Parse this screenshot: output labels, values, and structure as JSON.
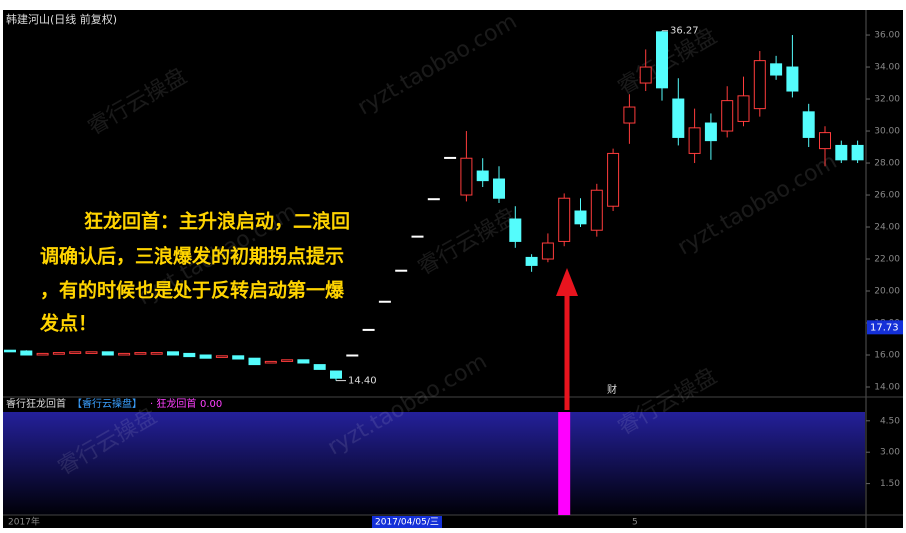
{
  "chart_data": [
    {
      "type": "candlestick",
      "title": "韩建河山(日线 前复权)",
      "annotation": [
        "狂龙回首：主升浪启动，二浪回",
        "调确认后，三浪爆发的初期拐点提示",
        "，有的时候也是处于反转启动第一爆",
        "发点！"
      ],
      "watermark": [
        "睿行云操盘",
        "ryzt.taobao.com"
      ],
      "event_marker": "财",
      "open": [
        16.3,
        16.25,
        16.0,
        16.05,
        16.1,
        16.1,
        16.2,
        16.0,
        16.05,
        16.05,
        16.2,
        16.1,
        16.0,
        15.85,
        15.95,
        15.8,
        15.5,
        15.6,
        15.7,
        15.4,
        15.0,
        16.0,
        17.6,
        19.36,
        21.3,
        23.43,
        25.77,
        28.35,
        26.0,
        27.5,
        27.0,
        24.5,
        22.1,
        22.0,
        23.1,
        25.0,
        23.8,
        25.3,
        30.5,
        33.0,
        36.2,
        32.0,
        28.6,
        30.5,
        30.0,
        30.6,
        31.4,
        34.2,
        34.0,
        31.2,
        28.9,
        29.1,
        29.1
      ],
      "high": [
        16.3,
        16.3,
        16.1,
        16.15,
        16.2,
        16.2,
        16.2,
        16.1,
        16.15,
        16.15,
        16.2,
        16.1,
        16.0,
        15.95,
        15.95,
        15.8,
        15.6,
        15.7,
        15.7,
        15.4,
        15.0,
        16.0,
        17.6,
        19.36,
        21.3,
        23.43,
        25.77,
        28.35,
        30.0,
        28.3,
        27.8,
        25.3,
        22.3,
        23.6,
        26.1,
        25.8,
        26.7,
        28.9,
        32.3,
        35.1,
        36.27,
        33.3,
        31.4,
        31.1,
        32.8,
        33.4,
        35.0,
        34.7,
        36.0,
        31.7,
        30.3,
        29.4,
        29.4
      ],
      "low": [
        16.2,
        16.0,
        16.0,
        16.05,
        16.1,
        16.1,
        16.0,
        16.0,
        16.05,
        16.05,
        16.0,
        15.9,
        15.8,
        15.85,
        15.75,
        15.4,
        15.5,
        15.6,
        15.5,
        15.1,
        14.4,
        16.0,
        17.6,
        19.36,
        21.3,
        23.43,
        25.77,
        28.35,
        25.6,
        26.5,
        25.5,
        22.7,
        21.2,
        21.8,
        22.8,
        24.0,
        23.4,
        25.0,
        29.2,
        32.5,
        31.9,
        29.1,
        28.0,
        28.2,
        29.6,
        30.3,
        30.9,
        33.2,
        32.1,
        29.0,
        27.8,
        28.0,
        28.0
      ],
      "close": [
        16.2,
        16.0,
        16.1,
        16.15,
        16.2,
        16.2,
        16.0,
        16.1,
        16.15,
        16.15,
        16.0,
        15.9,
        15.8,
        15.95,
        15.75,
        15.4,
        15.6,
        15.7,
        15.5,
        15.1,
        14.55,
        16.0,
        17.6,
        19.36,
        21.3,
        23.43,
        25.77,
        28.35,
        28.3,
        26.9,
        25.8,
        23.1,
        21.6,
        23.0,
        25.8,
        24.2,
        26.3,
        28.6,
        31.5,
        34.0,
        32.7,
        29.6,
        30.2,
        29.4,
        31.9,
        32.2,
        34.4,
        33.5,
        32.5,
        29.6,
        29.9,
        28.2,
        28.2
      ],
      "up_color": "#ff3c3c",
      "down_color": "#54fcfc",
      "flat_color": "#ffffff",
      "high_marker": 36.27,
      "low_marker": {
        "value": 14.4,
        "label": "14.40"
      },
      "cursor_price": {
        "value": 17.73,
        "label": "17.73"
      },
      "ylim": [
        13.375,
        37.44
      ],
      "yticks": [
        {
          "value": 14,
          "label": "14.00"
        },
        {
          "value": 16,
          "label": "16.00"
        },
        {
          "value": 18,
          "label": "18.00"
        },
        {
          "value": 20,
          "label": "20.00"
        },
        {
          "value": 22,
          "label": "22.00"
        },
        {
          "value": 24,
          "label": "24.00"
        },
        {
          "value": 26,
          "label": "26.00"
        },
        {
          "value": 28,
          "label": "28.00"
        },
        {
          "value": 30,
          "label": "30.00"
        },
        {
          "value": 32,
          "label": "32.00"
        },
        {
          "value": 34,
          "label": "34.00"
        },
        {
          "value": 36,
          "label": "36.00"
        }
      ]
    },
    {
      "type": "bar",
      "title": "睿行狂龙回首",
      "subtitle": "【睿行云操盘】",
      "signal_name": "· 狂龙回首",
      "signal_value": {
        "value": 0,
        "label": "0.00"
      },
      "color": "#ff00ff",
      "values": [
        0,
        0,
        0,
        0,
        0,
        0,
        0,
        0,
        0,
        0,
        0,
        0,
        0,
        0,
        0,
        0,
        0,
        0,
        0,
        0,
        0,
        0,
        0,
        0,
        0,
        0,
        0,
        0,
        0,
        0,
        0,
        0,
        0,
        0,
        4.92,
        0,
        0,
        0,
        0,
        0,
        0,
        0,
        0,
        0,
        0,
        0,
        0,
        0,
        0,
        0,
        0,
        0,
        0
      ],
      "ylim": [
        0,
        4.92
      ],
      "yticks": [
        {
          "value": 1.5,
          "label": "1.50"
        },
        {
          "value": 3,
          "label": "3.00"
        },
        {
          "value": 4.5,
          "label": "4.50"
        }
      ],
      "x_labels": [
        "2017年",
        "5"
      ],
      "cursor_date": "2017/04/05/三"
    }
  ]
}
